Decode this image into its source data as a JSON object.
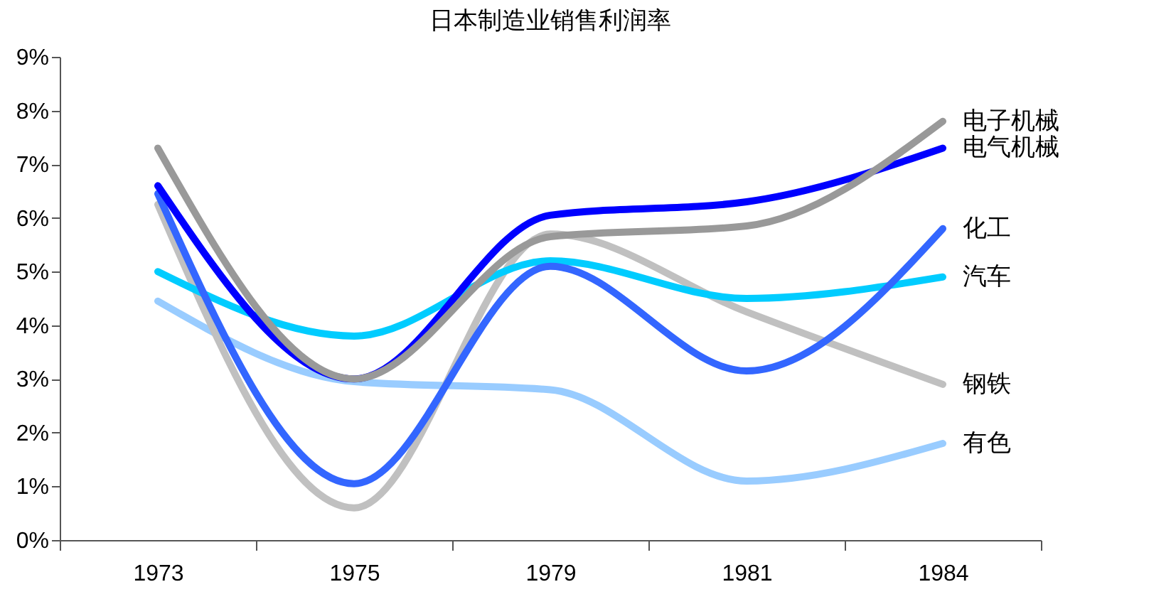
{
  "chart_data": {
    "type": "line",
    "title": "日本制造业销售利润率",
    "categories": [
      "1973",
      "1975",
      "1979",
      "1981",
      "1984"
    ],
    "ylim": [
      0,
      9
    ],
    "yticks": [
      {
        "value": 0,
        "label": "0%"
      },
      {
        "value": 1,
        "label": "1%"
      },
      {
        "value": 2,
        "label": "2%"
      },
      {
        "value": 3,
        "label": "3%"
      },
      {
        "value": 4,
        "label": "4%"
      },
      {
        "value": 5,
        "label": "5%"
      },
      {
        "value": 6,
        "label": "6%"
      },
      {
        "value": 7,
        "label": "7%"
      },
      {
        "value": 8,
        "label": "8%"
      },
      {
        "value": 9,
        "label": "9%"
      }
    ],
    "grid": false,
    "legend": false,
    "marker": "none",
    "line_style": "solid",
    "series": [
      {
        "name": "电子机械",
        "color": "#999999",
        "values": [
          7.3,
          3.0,
          5.65,
          5.85,
          7.8
        ]
      },
      {
        "name": "电气机械",
        "color": "#0000ff",
        "values": [
          6.6,
          3.0,
          6.05,
          6.3,
          7.3
        ]
      },
      {
        "name": "化工",
        "color": "#3366ff",
        "values": [
          6.45,
          1.05,
          5.1,
          3.15,
          5.8
        ]
      },
      {
        "name": "汽车",
        "color": "#00ccff",
        "values": [
          5.0,
          3.8,
          5.2,
          4.5,
          4.9
        ]
      },
      {
        "name": "钢铁",
        "color": "#c0c0c0",
        "values": [
          6.25,
          0.6,
          5.7,
          4.25,
          2.9
        ]
      },
      {
        "name": "有色",
        "color": "#99ccff",
        "values": [
          4.45,
          2.95,
          2.8,
          1.1,
          1.8
        ]
      }
    ]
  }
}
